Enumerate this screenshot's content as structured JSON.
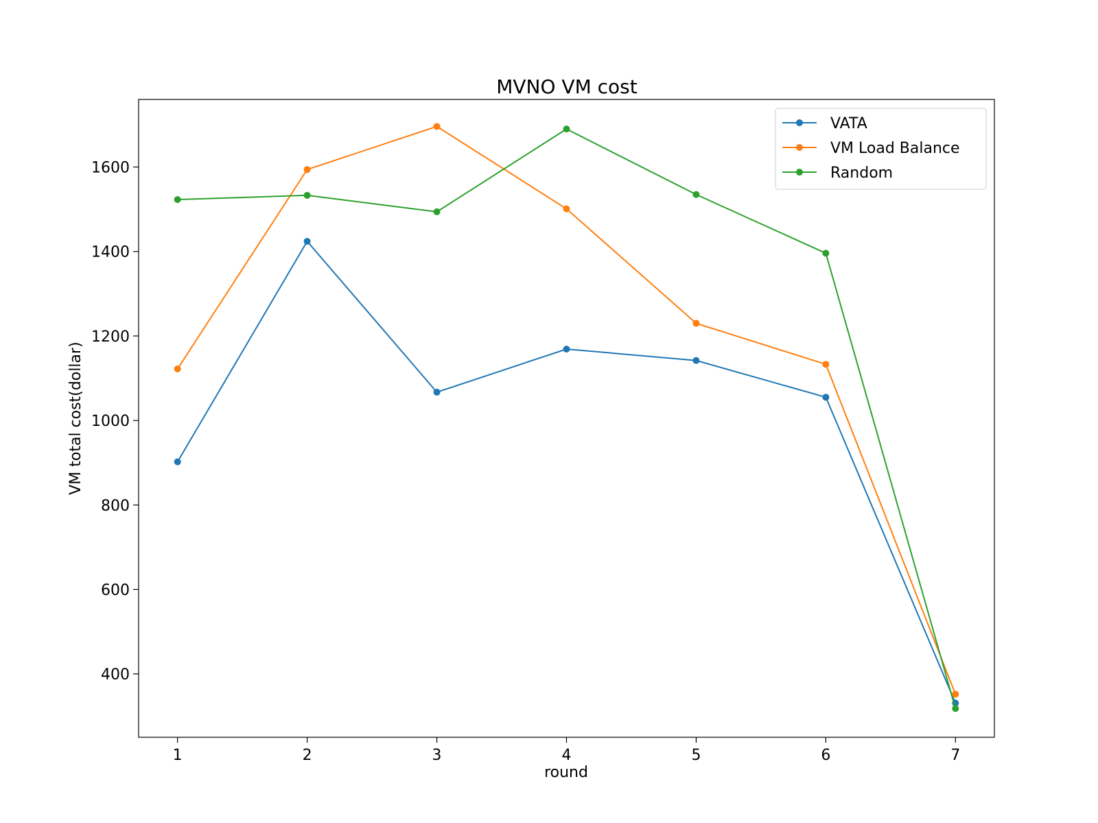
{
  "chart_data": {
    "type": "line",
    "title": "MVNO VM cost",
    "xlabel": "round",
    "ylabel": "VM total cost(dollar)",
    "x": [
      1,
      2,
      3,
      4,
      5,
      6,
      7
    ],
    "xlim": [
      0.7,
      7.3
    ],
    "ylim": [
      250,
      1760
    ],
    "yticks": [
      400,
      600,
      800,
      1000,
      1200,
      1400,
      1600
    ],
    "grid": false,
    "legend_position": "top-right",
    "series": [
      {
        "name": "VATA",
        "color": "#1f77b4",
        "values": [
          902,
          1424,
          1067,
          1169,
          1142,
          1055,
          331
        ]
      },
      {
        "name": "VM Load Balance",
        "color": "#ff7f0e",
        "values": [
          1122,
          1594,
          1696,
          1501,
          1230,
          1133,
          352
        ]
      },
      {
        "name": "Random",
        "color": "#2ca02c",
        "values": [
          1523,
          1533,
          1494,
          1690,
          1535,
          1396,
          318
        ]
      }
    ]
  }
}
